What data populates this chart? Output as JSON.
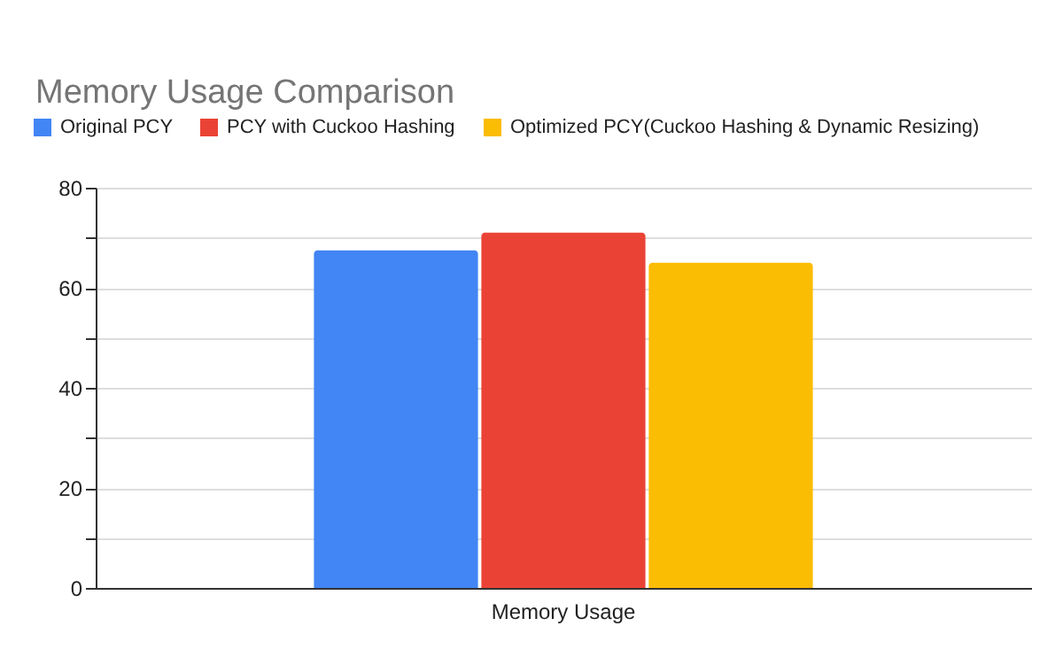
{
  "chart_data": {
    "type": "bar",
    "title": "Memory Usage Comparison",
    "categories": [
      "Memory Usage"
    ],
    "series": [
      {
        "name": "Original PCY",
        "color": "#4285f4",
        "values": [
          67.5
        ]
      },
      {
        "name": "PCY with Cuckoo Hashing",
        "color": "#ea4335",
        "values": [
          71
        ]
      },
      {
        "name": "Optimized PCY(Cuckoo Hashing & Dynamic Resizing)",
        "color": "#fbbc04",
        "values": [
          65
        ]
      }
    ],
    "ylim": [
      0,
      80
    ],
    "yticks": [
      0,
      {
        "value": 10,
        "label": null
      },
      20,
      {
        "value": 30,
        "label": null
      },
      40,
      {
        "value": 50,
        "label": null
      },
      60,
      {
        "value": 70,
        "label": null
      },
      80
    ],
    "grid": "y",
    "legend": "top"
  }
}
